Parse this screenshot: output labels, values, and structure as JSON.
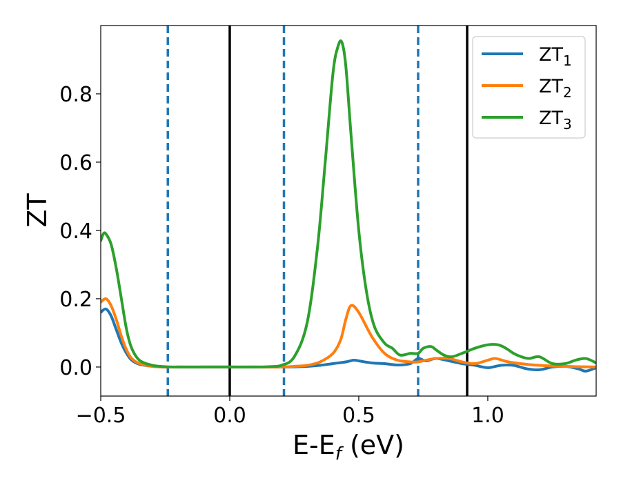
{
  "chart_data": {
    "type": "line",
    "title": "",
    "xlabel": {
      "main": "E-E",
      "sub": "f",
      "tail": " (eV)"
    },
    "ylabel": "ZT",
    "xlim": [
      -0.5,
      1.42
    ],
    "ylim": [
      -0.085,
      1.0
    ],
    "xticks": [
      -0.5,
      0.0,
      0.5,
      1.0
    ],
    "xtick_labels": [
      "−0.5",
      "0.0",
      "0.5",
      "1.0"
    ],
    "yticks": [
      0.0,
      0.2,
      0.4,
      0.6,
      0.8
    ],
    "ytick_labels": [
      "0.0",
      "0.2",
      "0.4",
      "0.6",
      "0.8"
    ],
    "grid": false,
    "legend_position": "top-right",
    "vlines_solid": [
      0.0,
      0.92
    ],
    "vlines_dashed": [
      -0.24,
      0.21,
      0.73
    ],
    "colors": {
      "vline_solid": "#000000",
      "vline_dashed": "#1f77b4"
    },
    "series": [
      {
        "name": "ZT",
        "sub": "1",
        "color": "#1f77b4",
        "x": [
          -0.5,
          -0.48,
          -0.46,
          -0.44,
          -0.42,
          -0.4,
          -0.38,
          -0.35,
          -0.3,
          -0.25,
          -0.2,
          -0.1,
          0.0,
          0.1,
          0.2,
          0.3,
          0.35,
          0.4,
          0.45,
          0.48,
          0.5,
          0.55,
          0.6,
          0.65,
          0.7,
          0.73,
          0.76,
          0.8,
          0.85,
          0.9,
          0.95,
          1.0,
          1.05,
          1.1,
          1.15,
          1.2,
          1.25,
          1.3,
          1.35,
          1.38,
          1.42
        ],
        "y": [
          0.16,
          0.17,
          0.15,
          0.11,
          0.07,
          0.04,
          0.02,
          0.008,
          0.002,
          0.0,
          0.0,
          0.0,
          0.0,
          0.0,
          0.0,
          0.002,
          0.005,
          0.01,
          0.015,
          0.02,
          0.018,
          0.012,
          0.01,
          0.006,
          0.01,
          0.025,
          0.018,
          0.025,
          0.018,
          0.01,
          0.005,
          -0.002,
          0.005,
          0.005,
          -0.005,
          -0.008,
          0.0,
          0.002,
          -0.005,
          -0.012,
          -0.002
        ]
      },
      {
        "name": "ZT",
        "sub": "2",
        "color": "#ff7f0e",
        "x": [
          -0.5,
          -0.48,
          -0.46,
          -0.44,
          -0.42,
          -0.4,
          -0.38,
          -0.35,
          -0.3,
          -0.25,
          -0.2,
          -0.1,
          0.0,
          0.1,
          0.2,
          0.25,
          0.3,
          0.35,
          0.4,
          0.43,
          0.45,
          0.47,
          0.5,
          0.55,
          0.6,
          0.65,
          0.7,
          0.73,
          0.76,
          0.8,
          0.85,
          0.9,
          0.95,
          1.0,
          1.03,
          1.08,
          1.15,
          1.2,
          1.25,
          1.3,
          1.35,
          1.42
        ],
        "y": [
          0.19,
          0.2,
          0.18,
          0.14,
          0.09,
          0.05,
          0.025,
          0.01,
          0.002,
          0.0,
          0.0,
          0.0,
          0.0,
          0.0,
          0.0,
          0.002,
          0.005,
          0.015,
          0.04,
          0.08,
          0.14,
          0.18,
          0.16,
          0.09,
          0.04,
          0.02,
          0.015,
          0.015,
          0.02,
          0.025,
          0.025,
          0.015,
          0.01,
          0.02,
          0.025,
          0.015,
          0.008,
          0.005,
          0.003,
          0.002,
          0.001,
          0.0
        ]
      },
      {
        "name": "ZT",
        "sub": "3",
        "color": "#2ca02c",
        "x": [
          -0.5,
          -0.49,
          -0.48,
          -0.46,
          -0.44,
          -0.42,
          -0.4,
          -0.38,
          -0.35,
          -0.3,
          -0.25,
          -0.2,
          -0.1,
          0.0,
          0.1,
          0.15,
          0.2,
          0.25,
          0.3,
          0.34,
          0.37,
          0.4,
          0.42,
          0.435,
          0.45,
          0.47,
          0.5,
          0.53,
          0.56,
          0.6,
          0.63,
          0.66,
          0.7,
          0.73,
          0.75,
          0.78,
          0.8,
          0.83,
          0.86,
          0.9,
          0.95,
          1.0,
          1.04,
          1.07,
          1.1,
          1.13,
          1.16,
          1.2,
          1.25,
          1.3,
          1.34,
          1.38,
          1.42
        ],
        "y": [
          0.37,
          0.39,
          0.39,
          0.36,
          0.29,
          0.2,
          0.11,
          0.055,
          0.02,
          0.005,
          0.001,
          0.0,
          0.0,
          0.0,
          0.0,
          0.001,
          0.005,
          0.03,
          0.13,
          0.35,
          0.6,
          0.86,
          0.94,
          0.95,
          0.88,
          0.68,
          0.4,
          0.22,
          0.12,
          0.07,
          0.055,
          0.035,
          0.04,
          0.04,
          0.055,
          0.06,
          0.05,
          0.035,
          0.03,
          0.04,
          0.055,
          0.065,
          0.065,
          0.055,
          0.04,
          0.03,
          0.025,
          0.03,
          0.01,
          0.01,
          0.02,
          0.025,
          0.012
        ]
      }
    ]
  }
}
